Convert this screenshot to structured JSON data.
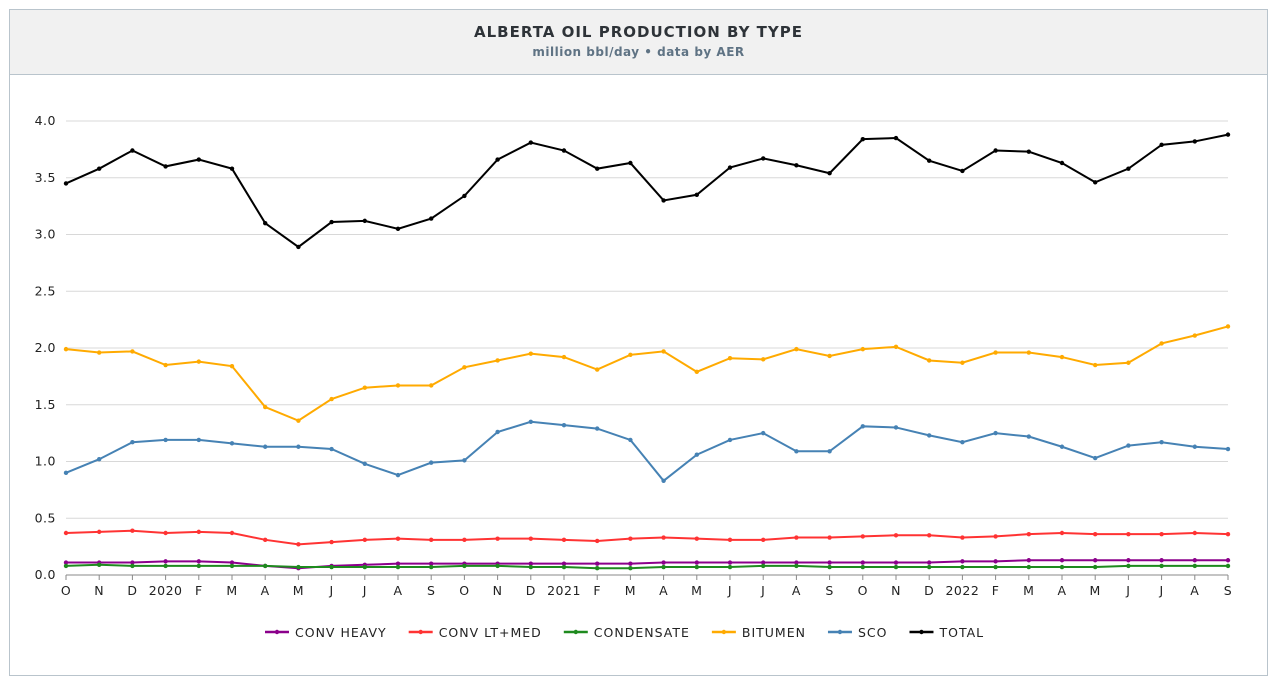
{
  "chart_data": {
    "type": "line",
    "title": "ALBERTA OIL PRODUCTION BY TYPE",
    "subtitle": "million bbl/day • data by AER",
    "xlabel": "",
    "ylabel": "",
    "ylim": [
      0,
      4.0
    ],
    "yticks": [
      "0.0",
      "0.5",
      "1.0",
      "1.5",
      "2.0",
      "2.5",
      "3.0",
      "3.5",
      "4.0"
    ],
    "grid": true,
    "legend": "bottom",
    "categories": [
      "O",
      "N",
      "D",
      "2020",
      "F",
      "M",
      "A",
      "M",
      "J",
      "J",
      "A",
      "S",
      "O",
      "N",
      "D",
      "2021",
      "F",
      "M",
      "A",
      "M",
      "J",
      "J",
      "A",
      "S",
      "O",
      "N",
      "D",
      "2022",
      "F",
      "M",
      "A",
      "M",
      "J",
      "J",
      "A",
      "S"
    ],
    "series": [
      {
        "name": "CONV HEAVY",
        "color": "#8b008b",
        "values": [
          0.11,
          0.11,
          0.11,
          0.12,
          0.12,
          0.11,
          0.08,
          0.06,
          0.08,
          0.09,
          0.1,
          0.1,
          0.1,
          0.1,
          0.1,
          0.1,
          0.1,
          0.1,
          0.11,
          0.11,
          0.11,
          0.11,
          0.11,
          0.11,
          0.11,
          0.11,
          0.11,
          0.12,
          0.12,
          0.13,
          0.13,
          0.13,
          0.13,
          0.13,
          0.13,
          0.13
        ]
      },
      {
        "name": "CONV LT+MED",
        "color": "#ff3333",
        "values": [
          0.37,
          0.38,
          0.39,
          0.37,
          0.38,
          0.37,
          0.31,
          0.27,
          0.29,
          0.31,
          0.32,
          0.31,
          0.31,
          0.32,
          0.32,
          0.31,
          0.3,
          0.32,
          0.33,
          0.32,
          0.31,
          0.31,
          0.33,
          0.33,
          0.34,
          0.35,
          0.35,
          0.33,
          0.34,
          0.36,
          0.37,
          0.36,
          0.36,
          0.36,
          0.37,
          0.36
        ]
      },
      {
        "name": "CONDENSATE",
        "color": "#1e8a1e",
        "values": [
          0.08,
          0.09,
          0.08,
          0.08,
          0.08,
          0.08,
          0.08,
          0.07,
          0.07,
          0.07,
          0.07,
          0.07,
          0.08,
          0.08,
          0.07,
          0.07,
          0.06,
          0.06,
          0.07,
          0.07,
          0.07,
          0.08,
          0.08,
          0.07,
          0.07,
          0.07,
          0.07,
          0.07,
          0.07,
          0.07,
          0.07,
          0.07,
          0.08,
          0.08,
          0.08,
          0.08
        ]
      },
      {
        "name": "BITUMEN",
        "color": "#ffaa00",
        "values": [
          1.99,
          1.96,
          1.97,
          1.85,
          1.88,
          1.84,
          1.48,
          1.36,
          1.55,
          1.65,
          1.67,
          1.67,
          1.83,
          1.89,
          1.95,
          1.92,
          1.81,
          1.94,
          1.97,
          1.79,
          1.91,
          1.9,
          1.99,
          1.93,
          1.99,
          2.01,
          1.89,
          1.87,
          1.96,
          1.96,
          1.92,
          1.85,
          1.87,
          2.04,
          2.11,
          2.19
        ]
      },
      {
        "name": "SCO",
        "color": "#4682b4",
        "values": [
          0.9,
          1.02,
          1.17,
          1.19,
          1.19,
          1.16,
          1.13,
          1.13,
          1.11,
          0.98,
          0.88,
          0.99,
          1.01,
          1.26,
          1.35,
          1.32,
          1.29,
          1.19,
          0.83,
          1.06,
          1.19,
          1.25,
          1.09,
          1.09,
          1.31,
          1.3,
          1.23,
          1.17,
          1.25,
          1.22,
          1.13,
          1.03,
          1.14,
          1.17,
          1.13,
          1.11
        ]
      },
      {
        "name": "TOTAL",
        "color": "#000000",
        "values": [
          3.45,
          3.58,
          3.74,
          3.6,
          3.66,
          3.58,
          3.1,
          2.89,
          3.11,
          3.12,
          3.05,
          3.14,
          3.34,
          3.66,
          3.81,
          3.74,
          3.58,
          3.63,
          3.3,
          3.35,
          3.59,
          3.67,
          3.61,
          3.54,
          3.84,
          3.85,
          3.65,
          3.56,
          3.74,
          3.73,
          3.63,
          3.46,
          3.58,
          3.79,
          3.82,
          3.88
        ]
      }
    ]
  }
}
